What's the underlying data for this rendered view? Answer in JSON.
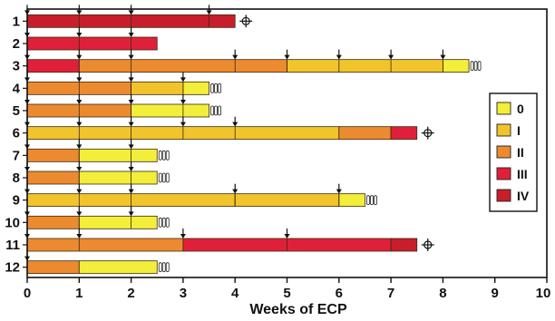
{
  "chart_data": {
    "type": "bar",
    "orientation": "horizontal",
    "xlabel": "Weeks of ECP",
    "ylabel": "",
    "xlim": [
      0,
      10
    ],
    "xticks": [
      "0",
      "1",
      "2",
      "3",
      "4",
      "5",
      "6",
      "7",
      "8",
      "9",
      "10"
    ],
    "grid": false,
    "legend_position": "right",
    "legend": [
      {
        "label": "0",
        "color": "#f2ee3a"
      },
      {
        "label": "I",
        "color": "#f2c42c"
      },
      {
        "label": "II",
        "color": "#ec8a30"
      },
      {
        "label": "III",
        "color": "#e0203a"
      },
      {
        "label": "IV",
        "color": "#c81e2c"
      }
    ],
    "stage_colors": {
      "0": "#f2ee3a",
      "I": "#f2c42c",
      "II": "#ec8a30",
      "III": "#e0203a",
      "IV": "#c81e2c"
    },
    "patients": [
      {
        "id": "1",
        "segments": [
          {
            "from": 0,
            "to": 4,
            "stage": "IV"
          }
        ],
        "arrows": [
          0,
          1,
          2,
          3.5
        ],
        "end": "deceased"
      },
      {
        "id": "2",
        "segments": [
          {
            "from": 0,
            "to": 2.5,
            "stage": "III"
          }
        ],
        "arrows": [
          0,
          1,
          2
        ],
        "end": "none"
      },
      {
        "id": "3",
        "segments": [
          {
            "from": 0,
            "to": 1,
            "stage": "III"
          },
          {
            "from": 1,
            "to": 5,
            "stage": "II"
          },
          {
            "from": 5,
            "to": 8,
            "stage": "I"
          },
          {
            "from": 8,
            "to": 8.5,
            "stage": "0"
          }
        ],
        "arrows": [
          0,
          1,
          2,
          4,
          5,
          6,
          7,
          8
        ],
        "end": "ongoing"
      },
      {
        "id": "4",
        "segments": [
          {
            "from": 0,
            "to": 2,
            "stage": "II"
          },
          {
            "from": 2,
            "to": 3,
            "stage": "I"
          },
          {
            "from": 3,
            "to": 3.5,
            "stage": "0"
          }
        ],
        "arrows": [
          0,
          1,
          2,
          3
        ],
        "end": "ongoing"
      },
      {
        "id": "5",
        "segments": [
          {
            "from": 0,
            "to": 2,
            "stage": "II"
          },
          {
            "from": 2,
            "to": 3.5,
            "stage": "0"
          }
        ],
        "arrows": [
          0,
          1,
          2,
          3
        ],
        "end": "ongoing"
      },
      {
        "id": "6",
        "segments": [
          {
            "from": 0,
            "to": 6,
            "stage": "I"
          },
          {
            "from": 6,
            "to": 7,
            "stage": "II"
          },
          {
            "from": 7,
            "to": 7.5,
            "stage": "III"
          }
        ],
        "arrows": [
          0,
          1,
          2,
          3,
          4
        ],
        "end": "deceased"
      },
      {
        "id": "7",
        "segments": [
          {
            "from": 0,
            "to": 1,
            "stage": "II"
          },
          {
            "from": 1,
            "to": 2.5,
            "stage": "0"
          }
        ],
        "arrows": [
          0,
          1,
          2
        ],
        "end": "ongoing"
      },
      {
        "id": "8",
        "segments": [
          {
            "from": 0,
            "to": 1,
            "stage": "II"
          },
          {
            "from": 1,
            "to": 2.5,
            "stage": "0"
          }
        ],
        "arrows": [
          0,
          1,
          2
        ],
        "end": "ongoing"
      },
      {
        "id": "9",
        "segments": [
          {
            "from": 0,
            "to": 4,
            "stage": "I"
          },
          {
            "from": 4,
            "to": 6,
            "stage": "I"
          },
          {
            "from": 6,
            "to": 6.5,
            "stage": "0"
          }
        ],
        "arrows": [
          0,
          1,
          2,
          4,
          6
        ],
        "end": "ongoing"
      },
      {
        "id": "10",
        "segments": [
          {
            "from": 0,
            "to": 1,
            "stage": "II"
          },
          {
            "from": 1,
            "to": 2.5,
            "stage": "0"
          }
        ],
        "arrows": [
          0,
          1,
          2
        ],
        "end": "ongoing"
      },
      {
        "id": "11",
        "segments": [
          {
            "from": 0,
            "to": 3,
            "stage": "II"
          },
          {
            "from": 3,
            "to": 7,
            "stage": "III"
          },
          {
            "from": 7,
            "to": 7.5,
            "stage": "IV"
          }
        ],
        "arrows": [
          0,
          1,
          3,
          5
        ],
        "end": "deceased"
      },
      {
        "id": "12",
        "segments": [
          {
            "from": 0,
            "to": 1,
            "stage": "II"
          },
          {
            "from": 1,
            "to": 2.5,
            "stage": "0"
          }
        ],
        "arrows": [
          0
        ],
        "end": "ongoing"
      }
    ],
    "markers": {
      "deceased": "✠",
      "ongoing": "≡"
    }
  }
}
